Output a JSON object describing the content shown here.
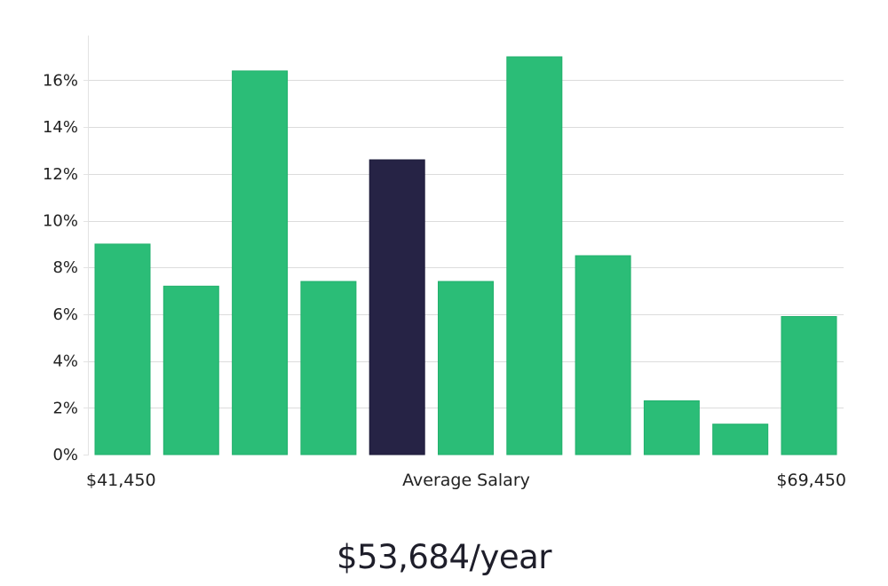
{
  "chart_data": {
    "type": "bar",
    "title": "",
    "xlabel": "Average Salary",
    "ylabel": "",
    "x_range_labels": {
      "min": "$41,450",
      "center": "Average Salary",
      "max": "$69,450"
    },
    "ylim": [
      0,
      17.9
    ],
    "yticks": [
      "0%",
      "2%",
      "4%",
      "6%",
      "8%",
      "10%",
      "12%",
      "14%",
      "16%"
    ],
    "ytick_values": [
      0,
      2,
      4,
      6,
      8,
      10,
      12,
      14,
      16
    ],
    "values": [
      9.0,
      7.2,
      16.4,
      7.4,
      12.6,
      7.4,
      17.0,
      8.5,
      2.3,
      1.3,
      5.9
    ],
    "highlight_index": 4,
    "colors": {
      "bar": "#2bbd77",
      "bar_edge": "#22b06c",
      "highlight": "#262345",
      "highlight_edge": "#1a1838"
    }
  },
  "salary_display": "$53,684/year"
}
